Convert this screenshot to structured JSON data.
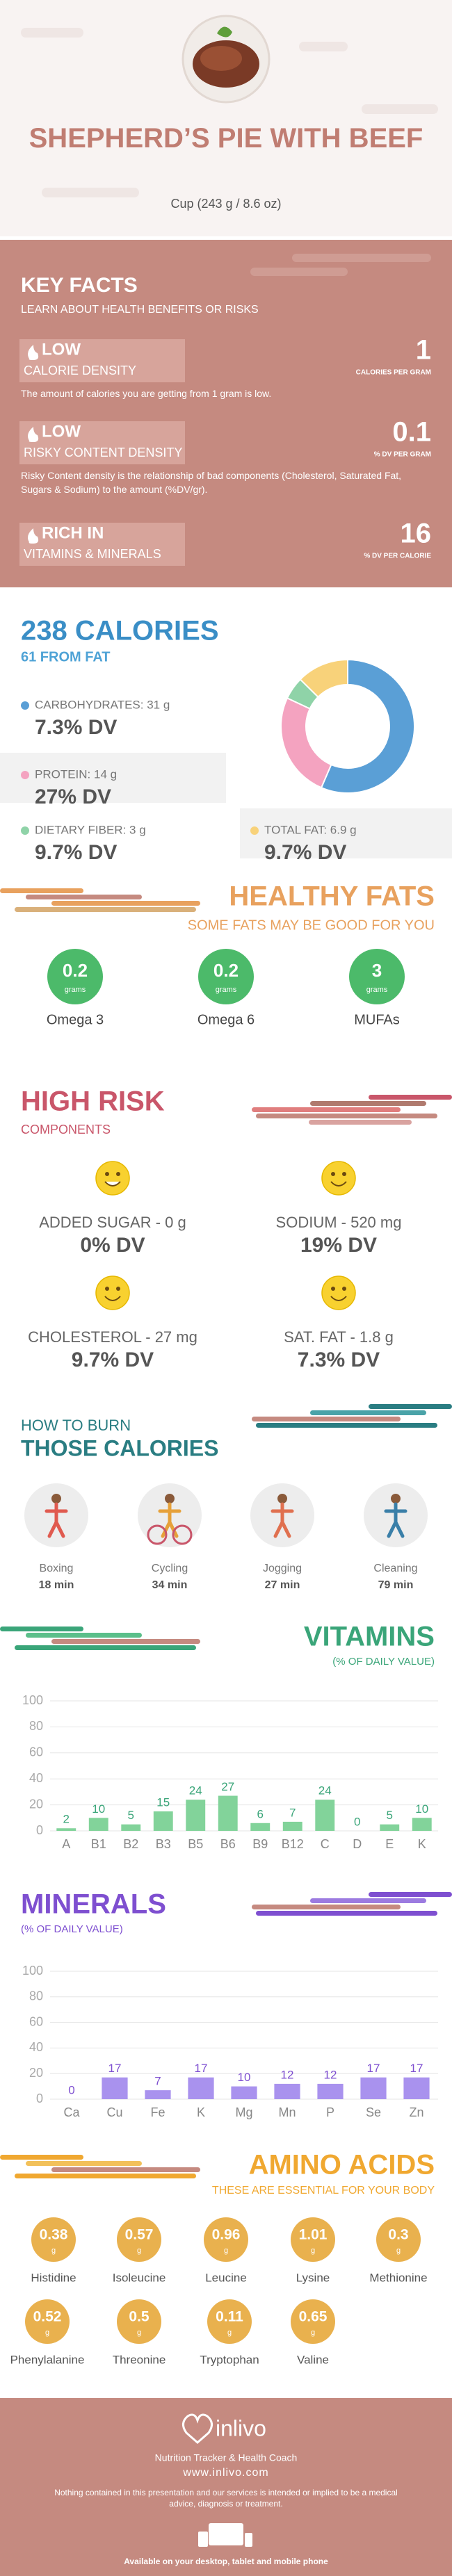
{
  "header": {
    "title": "SHEPHERD’S PIE WITH BEEF",
    "subtitle": "Cup (243 g / 8.6 oz)"
  },
  "key_facts": {
    "title": "KEY FACTS",
    "subtitle": "LEARN ABOUT HEALTH BENEFITS OR RISKS",
    "items": [
      {
        "level": "LOW",
        "label": "CALORIE DENSITY",
        "value": 1,
        "unit": "CALORIES PER GRAM",
        "description": "The amount of calories you are getting from 1 gram is low."
      },
      {
        "level": "LOW",
        "label": "RISKY CONTENT DENSITY",
        "value": 0.1,
        "unit": "% DV PER GRAM",
        "description": "Risky Content density is the relationship of bad components (Cholesterol, Saturated Fat, Sugars & Sodium) to the amount (%DV/gr)."
      },
      {
        "level": "RICH IN",
        "label": "VITAMINS & MINERALS",
        "value": 16,
        "unit": "% DV PER CALORIE"
      }
    ]
  },
  "calories": {
    "title": "238 CALORIES",
    "subtitle": "61 FROM FAT",
    "nutrients": [
      {
        "label": "CARBOHYDRATES: 31 g",
        "dv": "7.3% DV"
      },
      {
        "label": "PROTEIN: 14 g",
        "dv": "27% DV"
      },
      {
        "label": "DIETARY FIBER: 3 g",
        "dv": "9.7% DV"
      },
      {
        "label": "TOTAL FAT: 6.9 g",
        "dv": "9.7% DV"
      }
    ],
    "chart_data": {
      "type": "donut",
      "values": [
        31,
        14,
        3,
        6.9
      ],
      "colors": [
        "#5a9fd6",
        "#f4a3c0",
        "#8fd3a8",
        "#f8d27a"
      ]
    }
  },
  "healthy_fats": {
    "title": "HEALTHY FATS",
    "subtitle": "SOME FATS MAY BE GOOD FOR YOU",
    "unit": "grams",
    "items": [
      {
        "name": "Omega 3",
        "value": 0.2
      },
      {
        "name": "Omega 6",
        "value": 0.2
      },
      {
        "name": "MUFAs",
        "value": 3
      }
    ]
  },
  "high_risk": {
    "title": "HIGH RISK",
    "subtitle": "COMPONENTS",
    "items": [
      {
        "label": "ADDED SUGAR - 0 g",
        "dv": "0% DV"
      },
      {
        "label": "SODIUM - 520 mg",
        "dv": "19% DV"
      },
      {
        "label": "CHOLESTEROL - 27 mg",
        "dv": "9.7% DV"
      },
      {
        "label": "SAT. FAT - 1.8 g",
        "dv": "7.3% DV"
      }
    ]
  },
  "burn": {
    "title": "HOW TO BURN",
    "subtitle": "THOSE CALORIES",
    "activities": [
      {
        "name": "Boxing",
        "duration": "18 min"
      },
      {
        "name": "Cycling",
        "duration": "34 min"
      },
      {
        "name": "Jogging",
        "duration": "27 min"
      },
      {
        "name": "Cleaning",
        "duration": "79 min"
      }
    ]
  },
  "vitamins": {
    "title": "VITAMINS",
    "subtitle": "(% OF DAILY VALUE)",
    "chart_data": {
      "type": "bar",
      "categories": [
        "A",
        "B1",
        "B2",
        "B3",
        "B5",
        "B6",
        "B9",
        "B12",
        "C",
        "D",
        "E",
        "K"
      ],
      "values": [
        2,
        10,
        5,
        15,
        24,
        27,
        6,
        7,
        24,
        0,
        5,
        10
      ],
      "color": "#82d39a",
      "ylim": [
        0,
        100
      ],
      "yticks": [
        0,
        20,
        40,
        60,
        80,
        100
      ],
      "grid": true
    }
  },
  "minerals": {
    "title": "MINERALS",
    "subtitle": "(% OF DAILY VALUE)",
    "chart_data": {
      "type": "bar",
      "categories": [
        "Ca",
        "Cu",
        "Fe",
        "K",
        "Mg",
        "Mn",
        "P",
        "Se",
        "Zn"
      ],
      "values": [
        0,
        17,
        7,
        17,
        10,
        12,
        12,
        17,
        17
      ],
      "color": "#a992ee",
      "ylim": [
        0,
        100
      ],
      "yticks": [
        0,
        20,
        40,
        60,
        80,
        100
      ],
      "grid": true
    }
  },
  "amino_acids": {
    "title": "AMINO ACIDS",
    "subtitle": "THESE ARE ESSENTIAL FOR YOUR BODY",
    "unit": "g",
    "items": [
      {
        "name": "Histidine",
        "value": 0.38
      },
      {
        "name": "Isoleucine",
        "value": 0.57
      },
      {
        "name": "Leucine",
        "value": 0.96
      },
      {
        "name": "Lysine",
        "value": 1.01
      },
      {
        "name": "Methionine",
        "value": 0.3
      },
      {
        "name": "Phenylalanine",
        "value": 0.52
      },
      {
        "name": "Threonine",
        "value": 0.5
      },
      {
        "name": "Tryptophan",
        "value": 0.11
      },
      {
        "name": "Valine",
        "value": 0.65
      }
    ]
  },
  "footer": {
    "brand": "inlivo",
    "tagline": "Nutrition Tracker & Health Coach",
    "url": "www.inlivo.com",
    "disclaimer": "Nothing contained in this presentation and our services is intended or implied to be a medical advice, diagnosis or treatment.",
    "availability": "Available on your desktop, tablet and mobile phone"
  }
}
